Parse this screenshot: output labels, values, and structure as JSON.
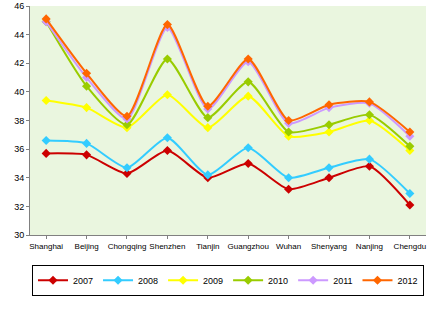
{
  "chart_data": {
    "type": "line",
    "categories": [
      "Shanghai",
      "Beijing",
      "Chongqing",
      "Shenzhen",
      "Tianjin",
      "Guangzhou",
      "Wuhan",
      "Shenyang",
      "Nanjing",
      "Chengdu"
    ],
    "series": [
      {
        "name": "2007",
        "color": "#cc0000",
        "values": [
          35.7,
          35.6,
          34.3,
          35.9,
          34.0,
          35.0,
          33.2,
          34.0,
          34.8,
          32.1
        ]
      },
      {
        "name": "2008",
        "color": "#33ccff",
        "values": [
          36.6,
          36.4,
          34.7,
          36.8,
          34.2,
          36.1,
          34.0,
          34.7,
          35.3,
          32.9
        ]
      },
      {
        "name": "2009",
        "color": "#ffff00",
        "values": [
          39.4,
          38.9,
          37.5,
          39.8,
          37.5,
          39.7,
          36.9,
          37.2,
          38.0,
          35.9
        ]
      },
      {
        "name": "2010",
        "color": "#99cc00",
        "values": [
          44.9,
          40.4,
          37.7,
          42.3,
          38.2,
          40.7,
          37.2,
          37.7,
          38.4,
          36.2
        ]
      },
      {
        "name": "2011",
        "color": "#cc99ff",
        "values": [
          44.9,
          41.0,
          38.1,
          44.5,
          38.8,
          42.1,
          37.8,
          38.9,
          39.2,
          36.9
        ]
      },
      {
        "name": "2012",
        "color": "#ff6600",
        "values": [
          45.1,
          41.3,
          38.3,
          44.7,
          39.0,
          42.3,
          38.0,
          39.1,
          39.3,
          37.2
        ]
      }
    ],
    "ylim": [
      30,
      46
    ],
    "yticks": [
      30,
      32,
      34,
      36,
      38,
      40,
      42,
      44,
      46
    ],
    "grid": false,
    "legend": "bottom",
    "marker": "diamond"
  }
}
